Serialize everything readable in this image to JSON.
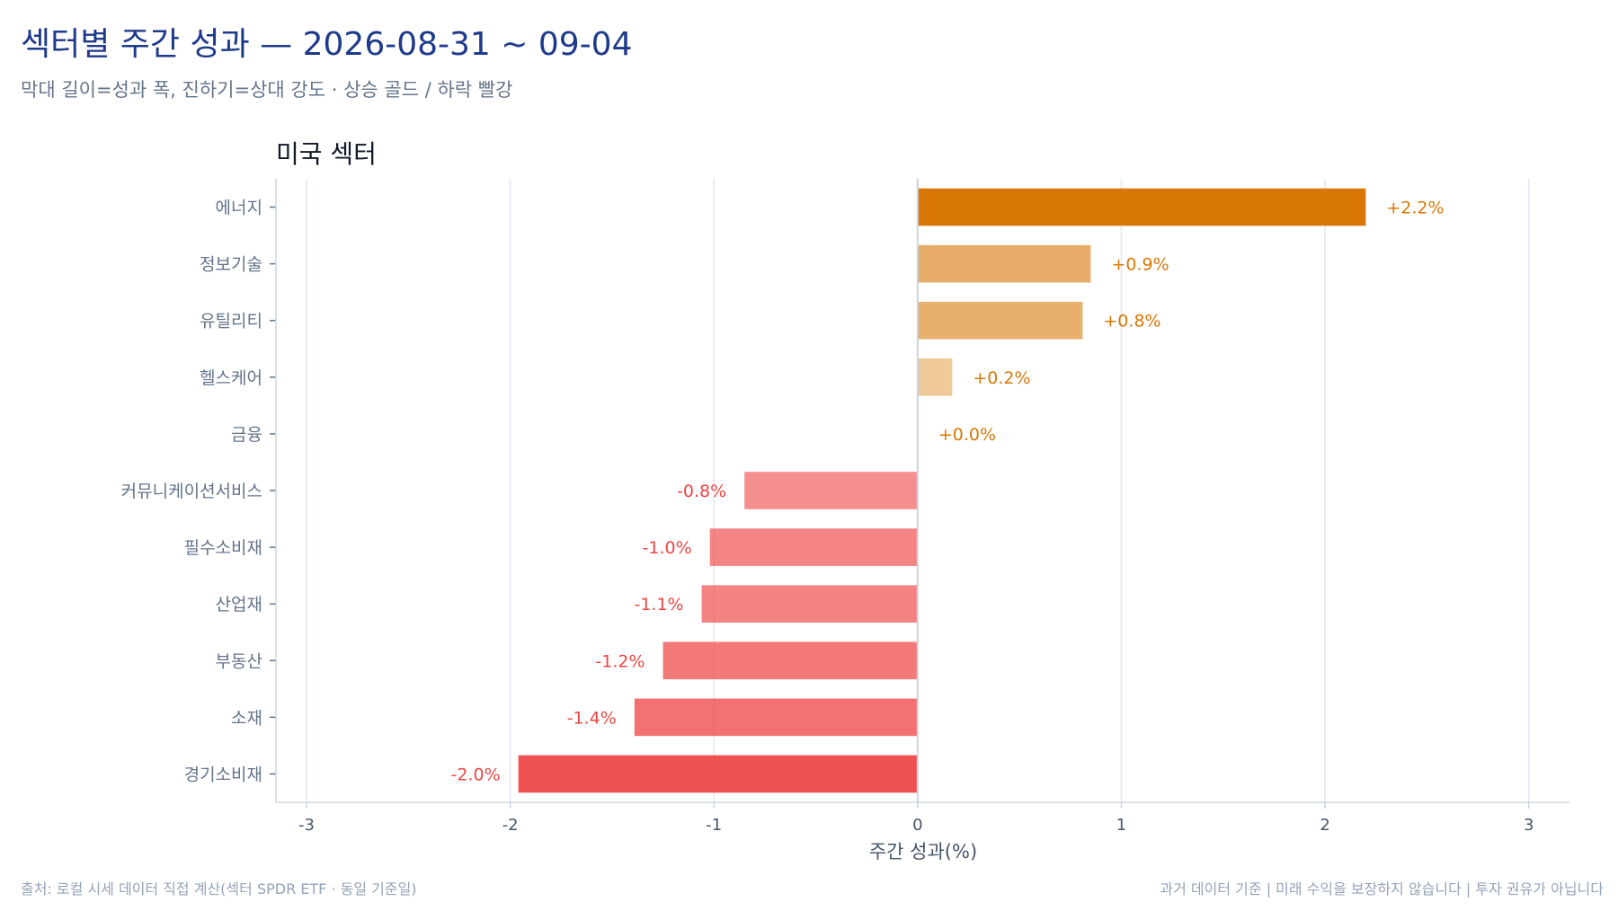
{
  "header": {
    "title": "섹터별 주간 성과 — 2026-08-31 ~ 09-04",
    "subtitle": "막대 길이=성과 폭, 진하기=상대 강도 · 상승 골드 / 하락 빨강"
  },
  "footer": {
    "source": "출처: 로컬 시세 데이터 직접 계산(섹터 SPDR ETF · 동일 기준일)",
    "disclaimer": "과거 데이터 기준 | 미래 수익을 보장하지 않습니다 | 투자 권유가 아닙니다"
  },
  "colors": {
    "up": "#d97706",
    "down": "#ef4444",
    "axis": "#cbd5e1",
    "grid": "#e2e8f0",
    "tick_text": "#475569",
    "category_text": "#64748b"
  },
  "chart_data": {
    "type": "bar",
    "orientation": "horizontal",
    "title": "미국 섹터",
    "xlabel": "주간 성과(%)",
    "ylabel": "",
    "xlim": [
      -3.15,
      3.2
    ],
    "xticks": [
      -3,
      -2,
      -1,
      0,
      1,
      2,
      3
    ],
    "grid": true,
    "categories": [
      "에너지",
      "정보기술",
      "유틸리티",
      "헬스케어",
      "금융",
      "커뮤니케이션서비스",
      "필수소비재",
      "산업재",
      "부동산",
      "소재",
      "경기소비재"
    ],
    "values": [
      2.2,
      0.85,
      0.81,
      0.17,
      0.0,
      -0.85,
      -1.02,
      -1.06,
      -1.25,
      -1.39,
      -1.96
    ],
    "labels": [
      "+2.2%",
      "+0.9%",
      "+0.8%",
      "+0.2%",
      "+0.0%",
      "-0.8%",
      "-1.0%",
      "-1.1%",
      "-1.2%",
      "-1.4%",
      "-2.0%"
    ]
  }
}
